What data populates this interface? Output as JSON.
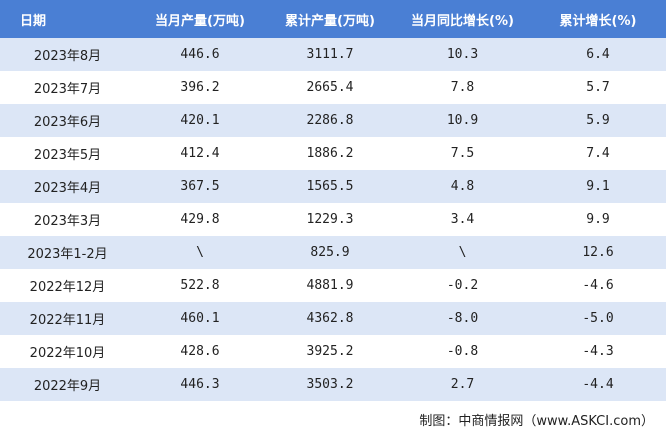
{
  "table": {
    "header": [
      "日期",
      "当月产量(万吨)",
      "累计产量(万吨)",
      "当月同比增长(%)",
      "累计增长(%)"
    ],
    "rows": [
      [
        "2023年8月",
        "446.6",
        "3111.7",
        "10.3",
        "6.4"
      ],
      [
        "2023年7月",
        "396.2",
        "2665.4",
        "7.8",
        "5.7"
      ],
      [
        "2023年6月",
        "420.1",
        "2286.8",
        "10.9",
        "5.9"
      ],
      [
        "2023年5月",
        "412.4",
        "1886.2",
        "7.5",
        "7.4"
      ],
      [
        "2023年4月",
        "367.5",
        "1565.5",
        "4.8",
        "9.1"
      ],
      [
        "2023年3月",
        "429.8",
        "1229.3",
        "3.4",
        "9.9"
      ],
      [
        "2023年1-2月",
        "\\",
        "825.9",
        "\\",
        "12.6"
      ],
      [
        "2022年12月",
        "522.8",
        "4881.9",
        "-0.2",
        "-4.6"
      ],
      [
        "2022年11月",
        "460.1",
        "4362.8",
        "-8.0",
        "-5.0"
      ],
      [
        "2022年10月",
        "428.6",
        "3925.2",
        "-0.8",
        "-4.3"
      ],
      [
        "2022年9月",
        "446.3",
        "3503.2",
        "2.7",
        "-4.4"
      ]
    ]
  },
  "footer": "制图：中商情报网（www.ASKCI.com）"
}
